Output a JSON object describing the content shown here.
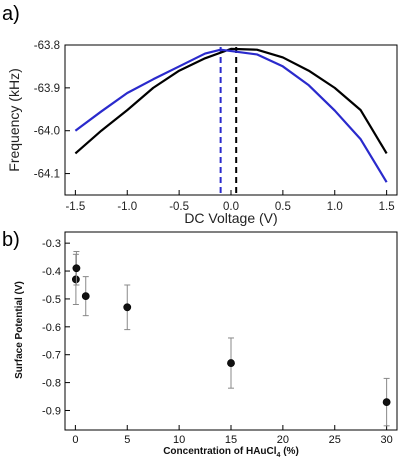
{
  "chart_data": [
    {
      "panel_label": "a)",
      "type": "line",
      "xlabel": "DC Voltage (V)",
      "ylabel": "Frequency (kHz)",
      "xlim": [
        -1.6,
        1.6
      ],
      "ylim": [
        -64.15,
        -63.8
      ],
      "xticks": [
        -1.5,
        -1.0,
        -0.5,
        0.0,
        0.5,
        1.0,
        1.5
      ],
      "xtick_labels": [
        "-1.5",
        "-1.0",
        "-0.5",
        "0.0",
        "0.5",
        "1.0",
        "1.5"
      ],
      "yticks": [
        -63.8,
        -63.9,
        -64.0,
        -64.1
      ],
      "ytick_labels": [
        "-63.8",
        "-63.9",
        "-64.0",
        "-64.1"
      ],
      "grid": false,
      "series": [
        {
          "color": "#000000",
          "x": [
            -1.5,
            -1.25,
            -1.0,
            -0.75,
            -0.5,
            -0.25,
            0.0,
            0.25,
            0.5,
            0.75,
            1.0,
            1.25,
            1.5
          ],
          "y": [
            -64.053,
            -64.0,
            -63.952,
            -63.9,
            -63.86,
            -63.831,
            -63.809,
            -63.811,
            -63.829,
            -63.86,
            -63.9,
            -63.952,
            -64.053
          ]
        },
        {
          "color": "#2a2acc",
          "x": [
            -1.5,
            -1.25,
            -1.0,
            -0.75,
            -0.5,
            -0.25,
            -0.1,
            0.25,
            0.5,
            0.75,
            1.0,
            1.25,
            1.5
          ],
          "y": [
            -64.0,
            -63.955,
            -63.912,
            -63.88,
            -63.85,
            -63.82,
            -63.811,
            -63.822,
            -63.85,
            -63.894,
            -63.953,
            -64.02,
            -64.12
          ]
        }
      ],
      "annotations": [
        {
          "type": "vline",
          "x": -0.1,
          "color": "#2a2acc",
          "style": "dashed"
        },
        {
          "type": "vline",
          "x": 0.05,
          "color": "#000000",
          "style": "dashed"
        }
      ]
    },
    {
      "panel_label": "b)",
      "type": "scatter",
      "xlabel": "Concentration of HAuCl",
      "xlabel_sub": "4",
      "xlabel_suffix": " (%)",
      "ylabel": "Surface Potential (V)",
      "xlim": [
        -1,
        31
      ],
      "ylim": [
        -0.97,
        -0.26
      ],
      "xticks": [
        0,
        5,
        10,
        15,
        20,
        25,
        30
      ],
      "xtick_labels": [
        "0",
        "5",
        "10",
        "15",
        "20",
        "25",
        "30"
      ],
      "yticks": [
        -0.3,
        -0.4,
        -0.5,
        -0.6,
        -0.7,
        -0.8,
        -0.9
      ],
      "ytick_labels": [
        "-0.3",
        "-0.4",
        "-0.5",
        "-0.6",
        "-0.7",
        "-0.8",
        "-0.9"
      ],
      "grid": false,
      "points": [
        {
          "x": 0.05,
          "y": -0.43,
          "err": 0.09
        },
        {
          "x": 0.1,
          "y": -0.39,
          "err": 0.06
        },
        {
          "x": 1,
          "y": -0.49,
          "err": 0.07
        },
        {
          "x": 5,
          "y": -0.53,
          "err": 0.08
        },
        {
          "x": 15,
          "y": -0.73,
          "err": 0.09
        },
        {
          "x": 30,
          "y": -0.87,
          "err": 0.085
        }
      ]
    }
  ]
}
